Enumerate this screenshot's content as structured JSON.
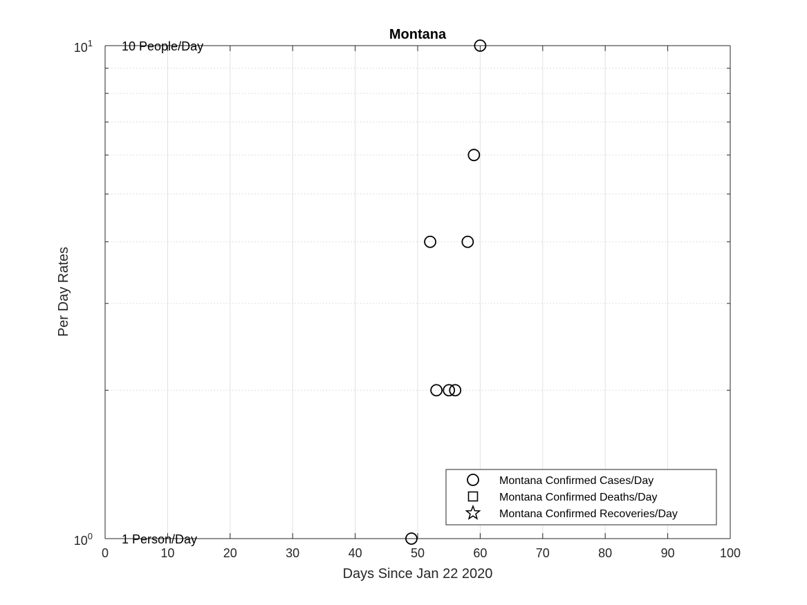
{
  "chart_data": {
    "type": "scatter",
    "title": "Montana",
    "xlabel": "Days Since Jan 22 2020",
    "ylabel": "Per Day Rates",
    "xlim": [
      0,
      100
    ],
    "ylim": [
      1,
      10
    ],
    "y_scale": "log",
    "grid": true,
    "x_ticks": [
      0,
      10,
      20,
      30,
      40,
      50,
      60,
      70,
      80,
      90,
      100
    ],
    "y_ticks": [
      {
        "value": 1,
        "base": "10",
        "exp": "0"
      },
      {
        "value": 10,
        "base": "10",
        "exp": "1"
      }
    ],
    "annotations": [
      {
        "text": "10 People/Day",
        "y": 10
      },
      {
        "text": "1 Person/Day",
        "y": 1
      }
    ],
    "legend_position": "bottom-right",
    "series": [
      {
        "name": "Montana Confirmed Cases/Day",
        "marker": "circle",
        "points": [
          {
            "x": 49,
            "y": 1
          },
          {
            "x": 52,
            "y": 4
          },
          {
            "x": 53,
            "y": 2
          },
          {
            "x": 55,
            "y": 2
          },
          {
            "x": 56,
            "y": 2
          },
          {
            "x": 58,
            "y": 4
          },
          {
            "x": 59,
            "y": 6
          },
          {
            "x": 60,
            "y": 10
          }
        ]
      },
      {
        "name": "Montana Confirmed Deaths/Day",
        "marker": "square",
        "points": []
      },
      {
        "name": "Montana Confirmed Recoveries/Day",
        "marker": "star",
        "points": []
      }
    ],
    "colors": {
      "marker": "#000000",
      "grid": "#e0e0e0",
      "axis": "#262626"
    }
  }
}
